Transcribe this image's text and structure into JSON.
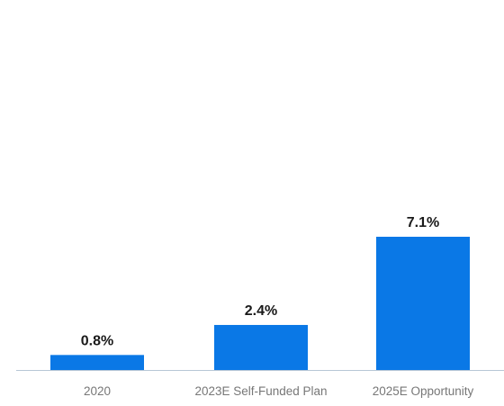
{
  "chart_data": {
    "type": "bar",
    "categories": [
      "2020",
      "2023E Self-Funded Plan",
      "2025E Opportunity"
    ],
    "values": [
      0.8,
      2.4,
      7.1
    ],
    "value_labels": [
      "0.8%",
      "2.4%",
      "7.1%"
    ],
    "title": "",
    "xlabel": "",
    "ylabel": "",
    "ylim": [
      0,
      7.1
    ],
    "grid": false,
    "legend": "none",
    "colors": {
      "bar": "#0a78e6",
      "axis": "#b8c7d6",
      "value_text": "#1a1a1a",
      "tick_text": "#777777"
    }
  }
}
